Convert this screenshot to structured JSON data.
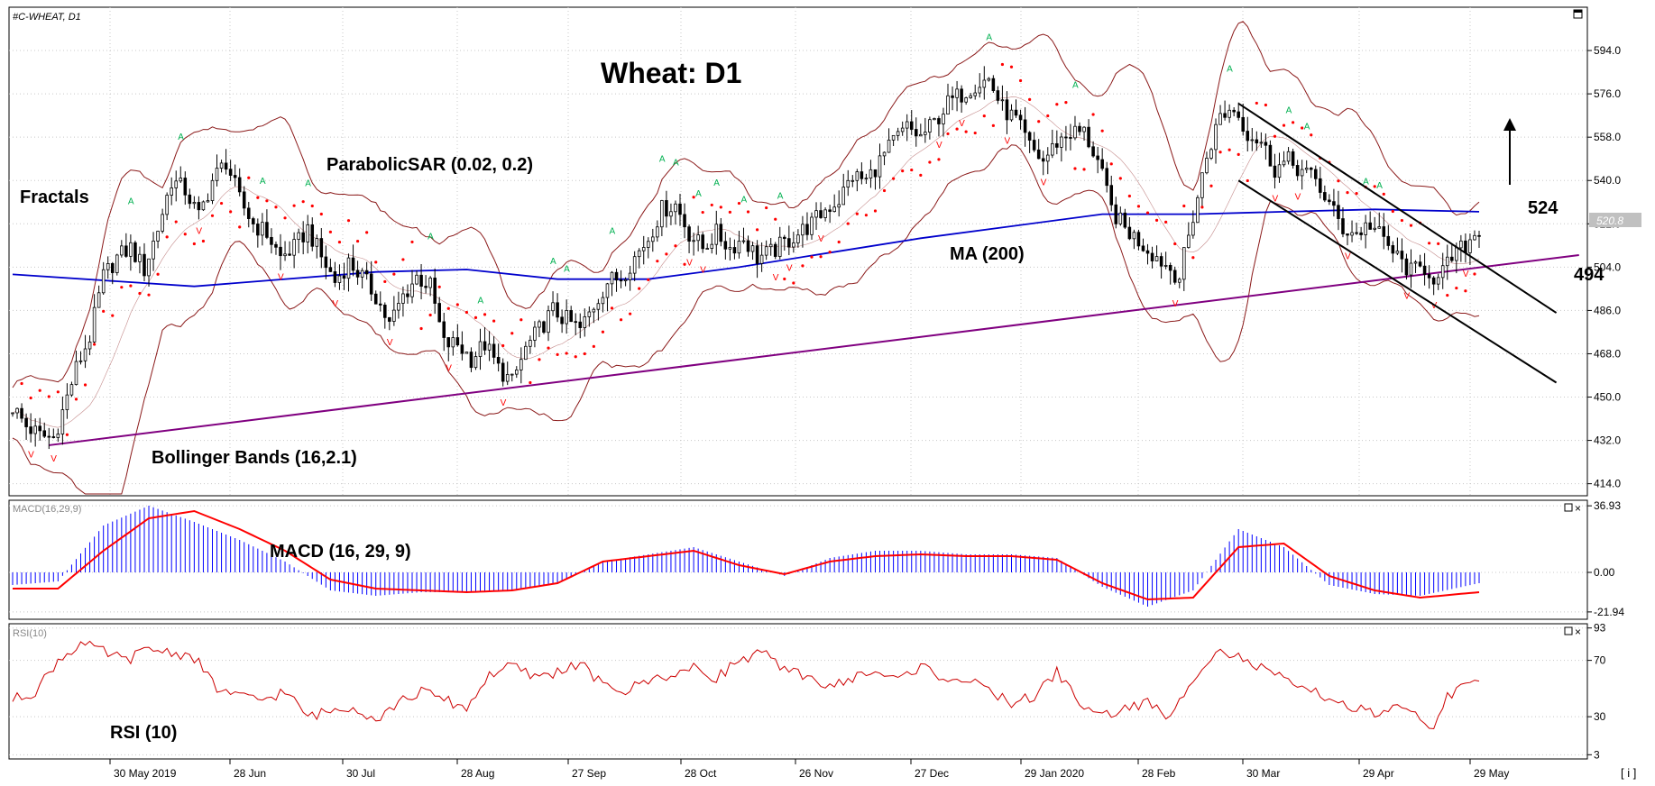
{
  "symbol_header": "#C-WHEAT, D1",
  "chart_title": "Wheat: D1",
  "annotations": {
    "parabolic_sar": "ParabolicSAR (0.02, 0.2)",
    "fractals": "Fractals",
    "bollinger": "Bollinger Bands (16,2.1)",
    "ma": "MA (200)",
    "macd": "MACD (16, 29, 9)",
    "rsi": "RSI (10)",
    "level_upper": "524",
    "level_lower": "494",
    "macd_header": "MACD(16,29,9)",
    "rsi_header": "RSI(10)"
  },
  "current_price_label": "520.8",
  "info_button": "[ i ]",
  "colors": {
    "grid": "#c8c8c8",
    "ma": "#0000cc",
    "bollinger": "#8b1a1a",
    "sar": "#ff0000",
    "trendline": "#800080",
    "fractal_up": "#00b050",
    "fractal_down": "#ff0000",
    "macd_hist": "#0000ff",
    "macd_signal": "#ff0000",
    "rsi": "#cc0000",
    "price_tag_bg": "#c0c0c0"
  },
  "chart_data": [
    {
      "type": "candlestick",
      "title": "Wheat: D1",
      "y_ticks": [
        "594.0",
        "576.0",
        "558.0",
        "540.0",
        "522.0",
        "504.0",
        "486.0",
        "468.0",
        "450.0",
        "432.0",
        "414.0"
      ],
      "ylim": [
        409,
        612
      ],
      "x_ticks": [
        "30 May 2019",
        "28 Jun",
        "30 Jul",
        "28 Aug",
        "27 Sep",
        "28 Oct",
        "26 Nov",
        "27 Dec",
        "29 Jan 2020",
        "28 Feb",
        "30 Mar",
        "29 Apr",
        "29 May"
      ],
      "n_bars": 256,
      "close_series": [
        [
          0,
          446
        ],
        [
          3,
          438
        ],
        [
          6,
          434
        ],
        [
          9,
          433
        ],
        [
          11,
          444
        ],
        [
          14,
          462
        ],
        [
          17,
          475
        ],
        [
          20,
          500
        ],
        [
          23,
          508
        ],
        [
          26,
          512
        ],
        [
          29,
          503
        ],
        [
          32,
          520
        ],
        [
          35,
          540
        ],
        [
          38,
          536
        ],
        [
          41,
          525
        ],
        [
          44,
          540
        ],
        [
          47,
          548
        ],
        [
          50,
          532
        ],
        [
          53,
          522
        ],
        [
          56,
          518
        ],
        [
          59,
          508
        ],
        [
          62,
          512
        ],
        [
          65,
          520
        ],
        [
          68,
          508
        ],
        [
          71,
          498
        ],
        [
          74,
          506
        ],
        [
          77,
          500
        ],
        [
          80,
          492
        ],
        [
          83,
          480
        ],
        [
          86,
          492
        ],
        [
          89,
          500
        ],
        [
          92,
          496
        ],
        [
          95,
          472
        ],
        [
          98,
          472
        ],
        [
          101,
          466
        ],
        [
          104,
          472
        ],
        [
          107,
          462
        ],
        [
          110,
          456
        ],
        [
          113,
          470
        ],
        [
          116,
          478
        ],
        [
          119,
          486
        ],
        [
          122,
          482
        ],
        [
          125,
          478
        ],
        [
          128,
          488
        ],
        [
          131,
          498
        ],
        [
          134,
          500
        ],
        [
          137,
          508
        ],
        [
          140,
          516
        ],
        [
          143,
          528
        ],
        [
          146,
          530
        ],
        [
          149,
          518
        ],
        [
          152,
          512
        ],
        [
          155,
          518
        ],
        [
          158,
          512
        ],
        [
          161,
          516
        ],
        [
          164,
          508
        ],
        [
          167,
          510
        ],
        [
          170,
          514
        ],
        [
          173,
          518
        ],
        [
          176,
          522
        ],
        [
          179,
          528
        ],
        [
          182,
          532
        ],
        [
          185,
          542
        ],
        [
          188,
          540
        ],
        [
          191,
          548
        ],
        [
          194,
          556
        ],
        [
          197,
          562
        ],
        [
          200,
          558
        ],
        [
          203,
          564
        ],
        [
          206,
          572
        ],
        [
          209,
          576
        ],
        [
          212,
          580
        ],
        [
          215,
          582
        ],
        [
          218,
          570
        ],
        [
          221,
          565
        ],
        [
          224,
          554
        ],
        [
          227,
          548
        ],
        [
          230,
          556
        ],
        [
          233,
          560
        ],
        [
          236,
          560
        ],
        [
          239,
          548
        ],
        [
          242,
          528
        ],
        [
          245,
          520
        ],
        [
          248,
          515
        ],
        [
          251,
          510
        ],
        [
          254,
          505
        ],
        [
          257,
          500
        ],
        [
          260,
          525
        ],
        [
          263,
          550
        ],
        [
          266,
          567
        ],
        [
          269,
          570
        ],
        [
          272,
          560
        ],
        [
          275,
          556
        ],
        [
          278,
          545
        ],
        [
          281,
          548
        ],
        [
          284,
          544
        ],
        [
          287,
          540
        ],
        [
          290,
          530
        ],
        [
          293,
          520
        ],
        [
          296,
          518
        ],
        [
          299,
          522
        ],
        [
          302,
          515
        ],
        [
          305,
          508
        ],
        [
          308,
          502
        ],
        [
          311,
          504
        ],
        [
          314,
          498
        ],
        [
          317,
          508
        ],
        [
          320,
          513
        ],
        [
          323,
          520
        ]
      ],
      "ma200": [
        [
          0,
          501
        ],
        [
          40,
          496
        ],
        [
          80,
          502
        ],
        [
          100,
          503
        ],
        [
          120,
          499
        ],
        [
          140,
          499
        ],
        [
          160,
          504
        ],
        [
          180,
          510
        ],
        [
          200,
          516
        ],
        [
          220,
          521
        ],
        [
          240,
          526
        ],
        [
          260,
          526
        ],
        [
          280,
          527
        ],
        [
          300,
          528
        ],
        [
          323,
          527
        ]
      ],
      "trendline": [
        [
          8,
          430
        ],
        [
          345,
          509
        ]
      ],
      "channel_upper": [
        [
          270,
          572
        ],
        [
          340,
          485
        ]
      ],
      "channel_lower": [
        [
          270,
          540
        ],
        [
          340,
          456
        ]
      ],
      "level_upper": 524,
      "level_lower": 494,
      "current_price": 520.8
    },
    {
      "type": "bar+line",
      "title": "MACD (16, 29, 9)",
      "y_ticks": [
        "36.93",
        "0.00",
        "-21.94"
      ],
      "ylim": [
        -26,
        40
      ],
      "histogram": [
        [
          0,
          -7
        ],
        [
          10,
          -5
        ],
        [
          20,
          26
        ],
        [
          30,
          37
        ],
        [
          40,
          28
        ],
        [
          50,
          18
        ],
        [
          60,
          6
        ],
        [
          70,
          -10
        ],
        [
          80,
          -13
        ],
        [
          90,
          -11
        ],
        [
          100,
          -11
        ],
        [
          110,
          -10
        ],
        [
          120,
          -6
        ],
        [
          130,
          6
        ],
        [
          140,
          10
        ],
        [
          150,
          14
        ],
        [
          160,
          6
        ],
        [
          170,
          -2
        ],
        [
          180,
          8
        ],
        [
          190,
          12
        ],
        [
          200,
          12
        ],
        [
          210,
          10
        ],
        [
          220,
          10
        ],
        [
          230,
          8
        ],
        [
          240,
          -8
        ],
        [
          250,
          -19
        ],
        [
          260,
          -10
        ],
        [
          270,
          24
        ],
        [
          280,
          14
        ],
        [
          290,
          -7
        ],
        [
          300,
          -12
        ],
        [
          310,
          -13
        ],
        [
          323,
          -6
        ]
      ],
      "signal": [
        [
          0,
          -9
        ],
        [
          10,
          -9
        ],
        [
          20,
          12
        ],
        [
          30,
          30
        ],
        [
          40,
          34
        ],
        [
          50,
          24
        ],
        [
          60,
          12
        ],
        [
          70,
          -4
        ],
        [
          80,
          -9
        ],
        [
          90,
          -10
        ],
        [
          100,
          -11
        ],
        [
          110,
          -10
        ],
        [
          120,
          -6
        ],
        [
          130,
          6
        ],
        [
          140,
          9
        ],
        [
          150,
          12
        ],
        [
          160,
          4
        ],
        [
          170,
          -1
        ],
        [
          180,
          6
        ],
        [
          190,
          9
        ],
        [
          200,
          10
        ],
        [
          210,
          9
        ],
        [
          220,
          9
        ],
        [
          230,
          7
        ],
        [
          240,
          -6
        ],
        [
          250,
          -15
        ],
        [
          260,
          -14
        ],
        [
          270,
          14
        ],
        [
          280,
          16
        ],
        [
          290,
          -2
        ],
        [
          300,
          -10
        ],
        [
          310,
          -14
        ],
        [
          323,
          -11
        ]
      ]
    },
    {
      "type": "line",
      "title": "RSI (10)",
      "y_ticks": [
        "93",
        "70",
        "30",
        "3"
      ],
      "ylim": [
        0,
        96
      ],
      "values": [
        [
          0,
          42
        ],
        [
          5,
          48
        ],
        [
          10,
          70
        ],
        [
          15,
          82
        ],
        [
          20,
          76
        ],
        [
          25,
          70
        ],
        [
          30,
          78
        ],
        [
          35,
          76
        ],
        [
          40,
          72
        ],
        [
          45,
          50
        ],
        [
          50,
          44
        ],
        [
          55,
          42
        ],
        [
          60,
          48
        ],
        [
          65,
          30
        ],
        [
          70,
          34
        ],
        [
          75,
          38
        ],
        [
          80,
          28
        ],
        [
          85,
          40
        ],
        [
          90,
          48
        ],
        [
          95,
          42
        ],
        [
          100,
          36
        ],
        [
          105,
          60
        ],
        [
          110,
          66
        ],
        [
          115,
          58
        ],
        [
          120,
          62
        ],
        [
          125,
          68
        ],
        [
          130,
          52
        ],
        [
          135,
          48
        ],
        [
          140,
          56
        ],
        [
          145,
          60
        ],
        [
          150,
          64
        ],
        [
          155,
          58
        ],
        [
          160,
          70
        ],
        [
          165,
          76
        ],
        [
          170,
          62
        ],
        [
          175,
          60
        ],
        [
          180,
          50
        ],
        [
          185,
          58
        ],
        [
          190,
          62
        ],
        [
          195,
          56
        ],
        [
          200,
          66
        ],
        [
          205,
          58
        ],
        [
          210,
          56
        ],
        [
          215,
          48
        ],
        [
          220,
          40
        ],
        [
          225,
          44
        ],
        [
          230,
          62
        ],
        [
          235,
          40
        ],
        [
          240,
          30
        ],
        [
          245,
          36
        ],
        [
          250,
          40
        ],
        [
          255,
          28
        ],
        [
          260,
          58
        ],
        [
          265,
          78
        ],
        [
          270,
          72
        ],
        [
          275,
          64
        ],
        [
          280,
          56
        ],
        [
          285,
          48
        ],
        [
          290,
          44
        ],
        [
          295,
          36
        ],
        [
          300,
          32
        ],
        [
          305,
          36
        ],
        [
          310,
          28
        ],
        [
          313,
          24
        ],
        [
          316,
          44
        ],
        [
          319,
          50
        ],
        [
          323,
          54
        ]
      ]
    }
  ]
}
